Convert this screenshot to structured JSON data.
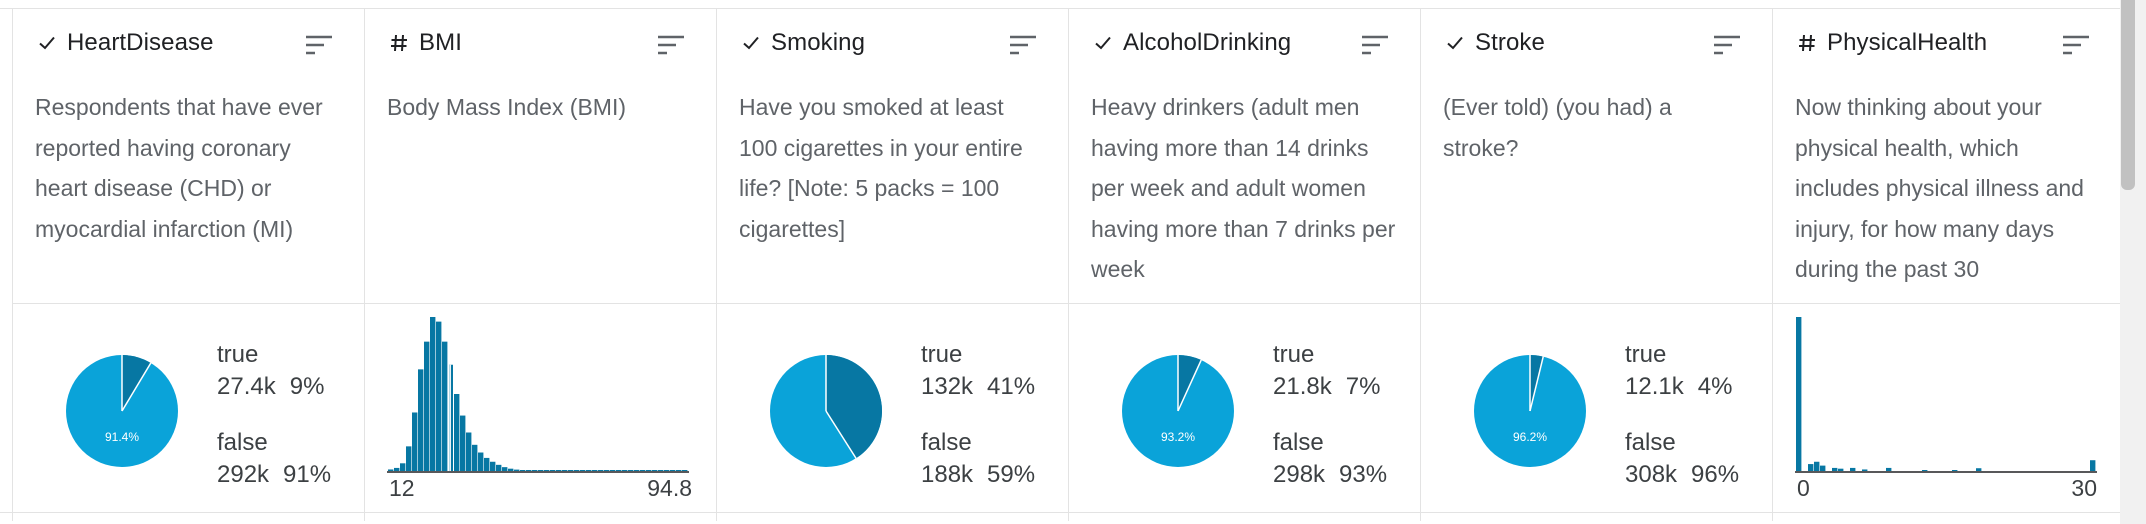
{
  "colors": {
    "primary_blue": "#0aa3d9",
    "dark_blue": "#0777a3"
  },
  "columns": [
    {
      "type_icon": "check-icon",
      "title": "HeartDisease",
      "description": "Respondents that have ever reported having coronary heart disease (CHD) or myocardial infarction (MI)",
      "chart": {
        "kind": "pie",
        "slices": [
          {
            "label": "true",
            "count": "27.4k",
            "pct": "9%",
            "fraction": 0.086
          },
          {
            "label": "false",
            "count": "292k",
            "pct": "91%",
            "fraction": 0.914
          }
        ],
        "inner_label": "91.4%"
      }
    },
    {
      "type_icon": "hash-icon",
      "title": "BMI",
      "description": "Body Mass Index (BMI)",
      "chart": {
        "kind": "histogram",
        "min_label": "12",
        "max_label": "94.8",
        "bars": [
          0.01,
          0.02,
          0.05,
          0.16,
          0.38,
          0.66,
          0.84,
          1.0,
          0.97,
          0.84,
          0.69,
          0.5,
          0.36,
          0.25,
          0.17,
          0.12,
          0.085,
          0.06,
          0.04,
          0.025,
          0.015,
          0.009,
          0.006,
          0.004,
          0.003,
          0.002,
          0.002,
          0.001,
          0.001,
          0.001,
          0.001,
          0.001,
          0.001,
          0.001,
          0.001,
          0.0005,
          0.0005,
          0.0005,
          0.0005,
          0.0005,
          0.0005,
          0.0005,
          0.0005,
          0.0005,
          0.0005,
          0.0005,
          0.0005,
          0.0005,
          0.0005,
          0.0005
        ],
        "highlight_index": 10
      }
    },
    {
      "type_icon": "check-icon",
      "title": "Smoking",
      "description": "Have you smoked at least 100 cigarettes in your entire life? [Note: 5 packs = 100 cigarettes]",
      "chart": {
        "kind": "pie",
        "slices": [
          {
            "label": "true",
            "count": "132k",
            "pct": "41%",
            "fraction": 0.41
          },
          {
            "label": "false",
            "count": "188k",
            "pct": "59%",
            "fraction": 0.59
          }
        ],
        "inner_label": ""
      }
    },
    {
      "type_icon": "check-icon",
      "title": "AlcoholDrinking",
      "description": "Heavy drinkers (adult men having more than 14 drinks per week and adult women having more than 7 drinks per week",
      "chart": {
        "kind": "pie",
        "slices": [
          {
            "label": "true",
            "count": "21.8k",
            "pct": "7%",
            "fraction": 0.068
          },
          {
            "label": "false",
            "count": "298k",
            "pct": "93%",
            "fraction": 0.932
          }
        ],
        "inner_label": "93.2%"
      }
    },
    {
      "type_icon": "check-icon",
      "title": "Stroke",
      "description": "(Ever told) (you had) a stroke?",
      "chart": {
        "kind": "pie",
        "slices": [
          {
            "label": "true",
            "count": "12.1k",
            "pct": "4%",
            "fraction": 0.038
          },
          {
            "label": "false",
            "count": "308k",
            "pct": "96%",
            "fraction": 0.962
          }
        ],
        "inner_label": "96.2%"
      }
    },
    {
      "type_icon": "hash-icon",
      "title": "PhysicalHealth",
      "description": "Now thinking about your physical health, which includes physical illness and injury, for how many days during the past 30",
      "chart": {
        "kind": "histogram",
        "min_label": "0",
        "max_label": "30",
        "bars": [
          1.0,
          0.0,
          0.045,
          0.06,
          0.035,
          0.0,
          0.02,
          0.015,
          0.0,
          0.02,
          0.0,
          0.01,
          0.0,
          0.0,
          0.0,
          0.02,
          0.0,
          0.0,
          0.0,
          0.0,
          0.0,
          0.005,
          0.0,
          0.0,
          0.0,
          0.0,
          0.005,
          0.0,
          0.0,
          0.0,
          0.018,
          0.0,
          0.0,
          0.0,
          0.0,
          0.0,
          0.0,
          0.0,
          0.0,
          0.0,
          0.0,
          0.0,
          0.0,
          0.0,
          0.0,
          0.0,
          0.0,
          0.0,
          0.0,
          0.07
        ],
        "highlight_index": -1
      }
    }
  ]
}
